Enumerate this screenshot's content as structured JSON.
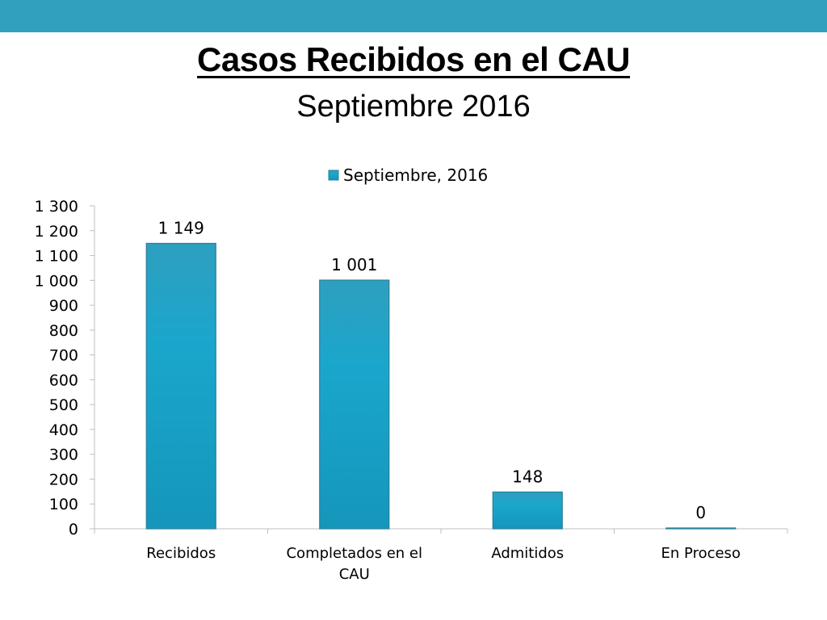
{
  "slide": {
    "title": "Casos Recibidos en el CAU",
    "subtitle": "Septiembre 2016"
  },
  "colors": {
    "top_bar": "#2fa1bf",
    "bar_fill": "#1aa6cc",
    "bar_stroke": "#2a7f9a",
    "axis": "#bfbfbf"
  },
  "chart_data": {
    "type": "bar",
    "categories": [
      "Recibidos",
      "Completados en el CAU",
      "Admitidos",
      "En Proceso"
    ],
    "category_lines": [
      [
        "Recibidos"
      ],
      [
        "Completados en el",
        "CAU"
      ],
      [
        "Admitidos"
      ],
      [
        "En Proceso"
      ]
    ],
    "series": [
      {
        "name": "Septiembre, 2016",
        "values": [
          1149,
          1001,
          148,
          0
        ]
      }
    ],
    "data_labels": [
      "1 149",
      "1 001",
      "148",
      "0"
    ],
    "ylim": [
      0,
      1300
    ],
    "yticks": [
      0,
      100,
      200,
      300,
      400,
      500,
      600,
      700,
      800,
      900,
      1000,
      1100,
      1200,
      1300
    ],
    "ytick_labels": [
      "0",
      "100",
      "200",
      "300",
      "400",
      "500",
      "600",
      "700",
      "800",
      "900",
      "1 000",
      "1 100",
      "1 200",
      "1 300"
    ],
    "legend": {
      "position": "top"
    },
    "grid": false
  }
}
